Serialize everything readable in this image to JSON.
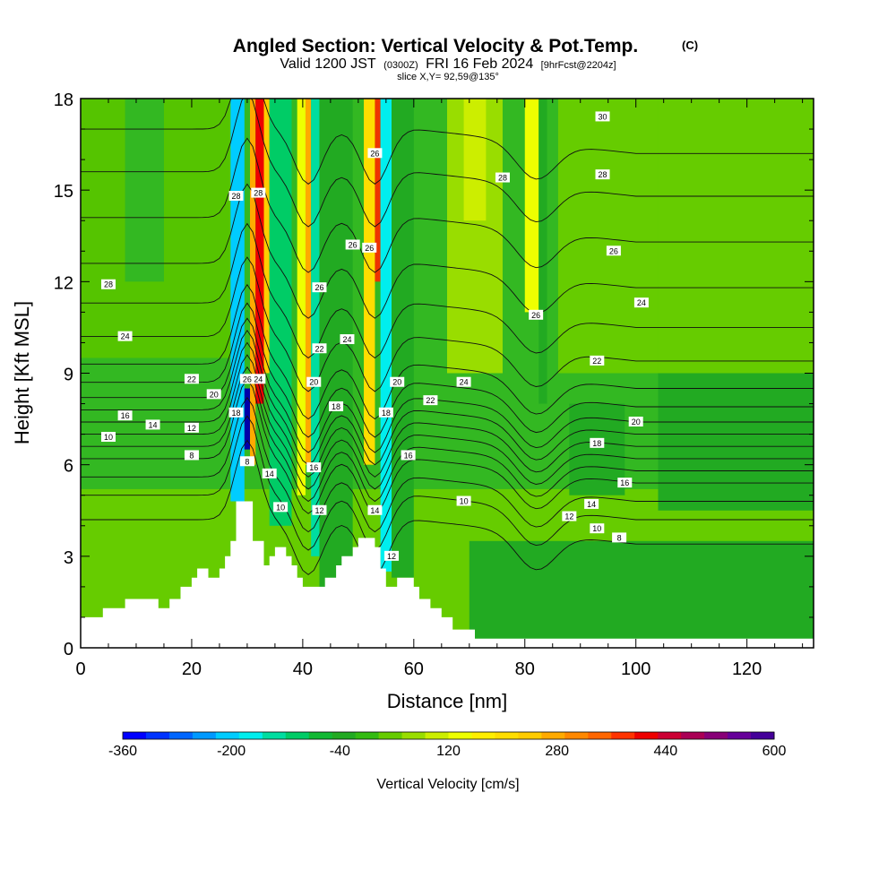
{
  "chart_data": {
    "type": "heatmap",
    "title": "Angled Section: Vertical Velocity & Pot.Temp.",
    "title_unit": "(C)",
    "subtitle": {
      "lead": "Valid 1200 JST",
      "utc": "(0300Z)",
      "date": "FRI 16 Feb 2024",
      "fcst": "[9hrFcst@2204z]"
    },
    "slice": "slice X,Y= 92,59@135°",
    "xlabel": "Distance [nm]",
    "ylabel": "Height [Kft MSL]",
    "xlim": [
      0,
      132
    ],
    "ylim": [
      0,
      18
    ],
    "xticks": [
      0,
      20,
      40,
      60,
      80,
      100,
      120
    ],
    "yticks": [
      0,
      3,
      6,
      9,
      12,
      15,
      18
    ],
    "grid": false,
    "colorbar": {
      "label": "Vertical Velocity [cm/s]",
      "range": [
        -360,
        600
      ],
      "step": 40,
      "tick_values": [
        -360,
        -200,
        -40,
        120,
        280,
        440,
        600
      ],
      "tick_labels": [
        "-360",
        "-200",
        "-40",
        "120",
        "280",
        "440",
        "600"
      ],
      "colors": [
        "#0000ff",
        "#0033ff",
        "#0066ff",
        "#0099ff",
        "#00ccff",
        "#00eeee",
        "#00dda0",
        "#00cc66",
        "#11b833",
        "#22aa22",
        "#33bb11",
        "#66cc00",
        "#99dd00",
        "#ccee00",
        "#eeff00",
        "#ffee00",
        "#ffdd00",
        "#ffcc00",
        "#ffaa00",
        "#ff8800",
        "#ff6600",
        "#ff3300",
        "#ee0000",
        "#cc0033",
        "#aa0055",
        "#880077",
        "#660099",
        "#440099"
      ]
    },
    "terrain_profile": [
      [
        0,
        1
      ],
      [
        4,
        1
      ],
      [
        4,
        1.3
      ],
      [
        8,
        1.3
      ],
      [
        8,
        1.6
      ],
      [
        14,
        1.6
      ],
      [
        14,
        1.3
      ],
      [
        16,
        1.3
      ],
      [
        16,
        1.6
      ],
      [
        18,
        1.6
      ],
      [
        18,
        2.0
      ],
      [
        20,
        2.0
      ],
      [
        20,
        2.3
      ],
      [
        21,
        2.3
      ],
      [
        21,
        2.6
      ],
      [
        23,
        2.6
      ],
      [
        23,
        2.3
      ],
      [
        25,
        2.3
      ],
      [
        25,
        2.6
      ],
      [
        26,
        2.6
      ],
      [
        26,
        3.0
      ],
      [
        27,
        3.0
      ],
      [
        27,
        3.5
      ],
      [
        28,
        3.5
      ],
      [
        28,
        4.8
      ],
      [
        31,
        4.8
      ],
      [
        31,
        3.5
      ],
      [
        33,
        3.5
      ],
      [
        33,
        2.7
      ],
      [
        34,
        2.7
      ],
      [
        34,
        3.0
      ],
      [
        35,
        3.0
      ],
      [
        35,
        3.3
      ],
      [
        37,
        3.3
      ],
      [
        37,
        3.0
      ],
      [
        38,
        3.0
      ],
      [
        38,
        2.7
      ],
      [
        39,
        2.7
      ],
      [
        39,
        2.3
      ],
      [
        40,
        2.3
      ],
      [
        40,
        2.0
      ],
      [
        44,
        2.0
      ],
      [
        44,
        2.3
      ],
      [
        46,
        2.3
      ],
      [
        46,
        2.7
      ],
      [
        47,
        2.7
      ],
      [
        47,
        3.0
      ],
      [
        49,
        3.0
      ],
      [
        49,
        3.3
      ],
      [
        50,
        3.3
      ],
      [
        50,
        3.6
      ],
      [
        53,
        3.6
      ],
      [
        53,
        3.3
      ],
      [
        54,
        3.3
      ],
      [
        54,
        2.6
      ],
      [
        55,
        2.6
      ],
      [
        55,
        2.0
      ],
      [
        57,
        2.0
      ],
      [
        57,
        2.3
      ],
      [
        60,
        2.3
      ],
      [
        60,
        2.0
      ],
      [
        61,
        2.0
      ],
      [
        61,
        1.6
      ],
      [
        63,
        1.6
      ],
      [
        63,
        1.3
      ],
      [
        65,
        1.3
      ],
      [
        65,
        1.0
      ],
      [
        67,
        1.0
      ],
      [
        67,
        0.6
      ],
      [
        71,
        0.6
      ],
      [
        71,
        0.3
      ],
      [
        132,
        0.3
      ]
    ],
    "contour_labels": [
      {
        "x": 28,
        "y": 14.8,
        "text": "28"
      },
      {
        "x": 32,
        "y": 14.9,
        "text": "28"
      },
      {
        "x": 5,
        "y": 11.9,
        "text": "28"
      },
      {
        "x": 8,
        "y": 10.2,
        "text": "24"
      },
      {
        "x": 20,
        "y": 8.8,
        "text": "22"
      },
      {
        "x": 24,
        "y": 8.3,
        "text": "20"
      },
      {
        "x": 8,
        "y": 7.6,
        "text": "16"
      },
      {
        "x": 13,
        "y": 7.3,
        "text": "14"
      },
      {
        "x": 20,
        "y": 7.2,
        "text": "12"
      },
      {
        "x": 5,
        "y": 6.9,
        "text": "10"
      },
      {
        "x": 20,
        "y": 6.3,
        "text": "8"
      },
      {
        "x": 28,
        "y": 7.7,
        "text": "18"
      },
      {
        "x": 32,
        "y": 8.8,
        "text": "24"
      },
      {
        "x": 30,
        "y": 8.8,
        "text": "26"
      },
      {
        "x": 30,
        "y": 6.1,
        "text": "8"
      },
      {
        "x": 34,
        "y": 5.7,
        "text": "14"
      },
      {
        "x": 36,
        "y": 4.6,
        "text": "10"
      },
      {
        "x": 43,
        "y": 11.8,
        "text": "26"
      },
      {
        "x": 43,
        "y": 9.8,
        "text": "22"
      },
      {
        "x": 42,
        "y": 8.7,
        "text": "20"
      },
      {
        "x": 46,
        "y": 7.9,
        "text": "18"
      },
      {
        "x": 42,
        "y": 5.9,
        "text": "16"
      },
      {
        "x": 43,
        "y": 4.5,
        "text": "12"
      },
      {
        "x": 49,
        "y": 13.2,
        "text": "26"
      },
      {
        "x": 52,
        "y": 13.1,
        "text": "26"
      },
      {
        "x": 53,
        "y": 16.2,
        "text": "26"
      },
      {
        "x": 48,
        "y": 10.1,
        "text": "24"
      },
      {
        "x": 57,
        "y": 8.7,
        "text": "20"
      },
      {
        "x": 55,
        "y": 7.7,
        "text": "18"
      },
      {
        "x": 59,
        "y": 6.3,
        "text": "16"
      },
      {
        "x": 53,
        "y": 4.5,
        "text": "14"
      },
      {
        "x": 56,
        "y": 3.0,
        "text": "12"
      },
      {
        "x": 63,
        "y": 8.1,
        "text": "22"
      },
      {
        "x": 69,
        "y": 8.7,
        "text": "24"
      },
      {
        "x": 69,
        "y": 4.8,
        "text": "10"
      },
      {
        "x": 76,
        "y": 15.4,
        "text": "28"
      },
      {
        "x": 82,
        "y": 10.9,
        "text": "26"
      },
      {
        "x": 94,
        "y": 17.4,
        "text": "30"
      },
      {
        "x": 94,
        "y": 15.5,
        "text": "28"
      },
      {
        "x": 96,
        "y": 13.0,
        "text": "26"
      },
      {
        "x": 101,
        "y": 11.3,
        "text": "24"
      },
      {
        "x": 93,
        "y": 9.4,
        "text": "22"
      },
      {
        "x": 100,
        "y": 7.4,
        "text": "20"
      },
      {
        "x": 93,
        "y": 6.7,
        "text": "18"
      },
      {
        "x": 98,
        "y": 5.4,
        "text": "16"
      },
      {
        "x": 92,
        "y": 4.7,
        "text": "14"
      },
      {
        "x": 88,
        "y": 4.3,
        "text": "12"
      },
      {
        "x": 93,
        "y": 3.9,
        "text": "10"
      },
      {
        "x": 97,
        "y": 3.6,
        "text": "8"
      }
    ],
    "isentropes": [
      {
        "y": 4.2
      },
      {
        "y": 5.0
      },
      {
        "y": 5.6
      },
      {
        "y": 6.2
      },
      {
        "y": 6.6
      },
      {
        "y": 7.0
      },
      {
        "y": 7.4
      },
      {
        "y": 7.8
      },
      {
        "y": 8.2
      },
      {
        "y": 8.7
      },
      {
        "y": 9.3
      },
      {
        "y": 10.2
      },
      {
        "y": 11.3
      },
      {
        "y": 12.6
      },
      {
        "y": 14.1
      },
      {
        "y": 15.6
      },
      {
        "y": 17.0
      }
    ]
  }
}
